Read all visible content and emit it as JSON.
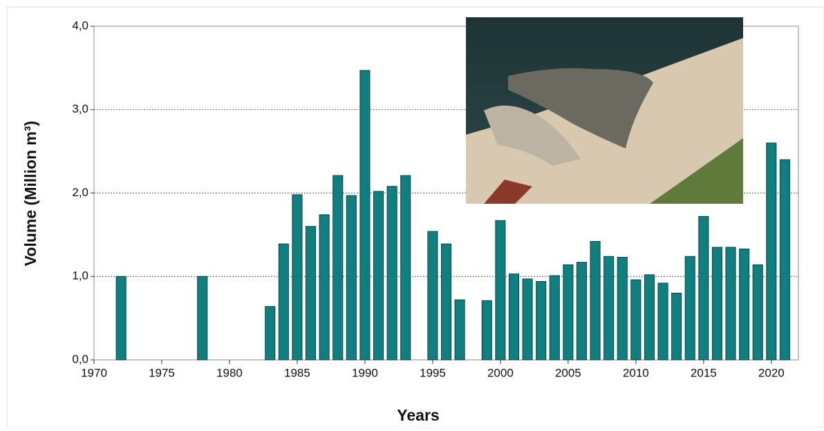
{
  "chart_data": {
    "type": "bar",
    "x_label": "Years",
    "y_label": "Volume (Million m³)",
    "x": [
      1972,
      1978,
      1983,
      1984,
      1985,
      1986,
      1987,
      1988,
      1989,
      1990,
      1991,
      1992,
      1993,
      1995,
      1996,
      1997,
      1999,
      2000,
      2001,
      2002,
      2003,
      2004,
      2005,
      2006,
      2007,
      2008,
      2009,
      2010,
      2011,
      2012,
      2013,
      2014,
      2015,
      2016,
      2017,
      2018,
      2019,
      2020,
      2021
    ],
    "values": [
      1.0,
      1.0,
      0.64,
      1.39,
      1.98,
      1.6,
      1.74,
      2.21,
      1.97,
      3.47,
      2.02,
      2.08,
      2.21,
      1.54,
      1.39,
      0.72,
      0.71,
      1.67,
      1.03,
      0.97,
      0.94,
      1.01,
      1.14,
      1.17,
      1.42,
      1.24,
      1.23,
      0.96,
      1.02,
      0.92,
      0.8,
      1.24,
      1.72,
      1.35,
      1.35,
      1.33,
      1.14,
      2.6,
      2.4
    ],
    "color": "#0f8080",
    "xlim": [
      1970,
      2022
    ],
    "xticks": [
      1970,
      1975,
      1980,
      1985,
      1990,
      1995,
      2000,
      2005,
      2010,
      2015,
      2020
    ],
    "ylim": [
      0,
      4
    ],
    "yticks": [
      {
        "value": 0,
        "label": "0,0"
      },
      {
        "value": 1,
        "label": "1,0"
      },
      {
        "value": 2,
        "label": "2,0"
      },
      {
        "value": 3,
        "label": "3,0"
      },
      {
        "value": 4,
        "label": "4,0"
      }
    ],
    "grid": true
  }
}
